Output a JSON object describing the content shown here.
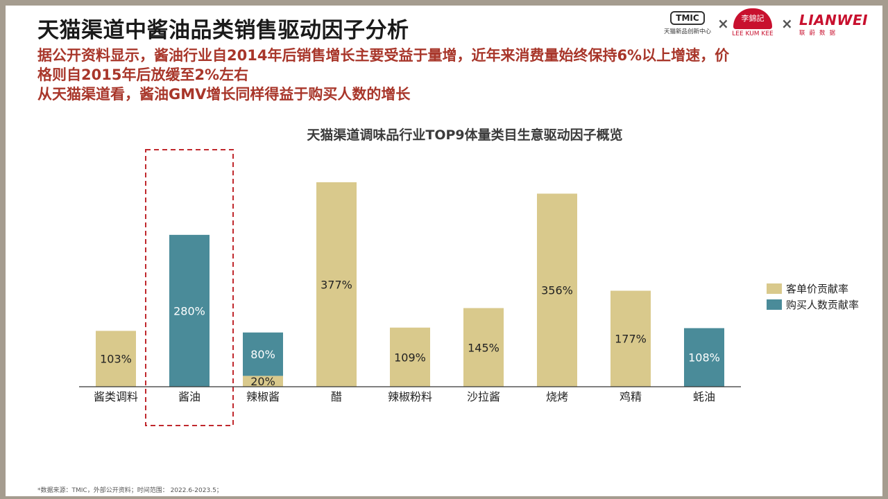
{
  "title": "天猫渠道中酱油品类销售驱动因子分析",
  "subtitle": {
    "line1": "据公开资料显示，酱油行业自2014年后销售增长主要受益于量增，近年来消费量始终保持6%以上增速，价",
    "line2": "格则自2015年后放缓至2%左右",
    "line3": "从天猫渠道看，酱油GMV增长同样得益于购买人数的增长"
  },
  "logos": {
    "tmic_badge": "TMIC",
    "tmic_name": "天猫新品创新中心",
    "separator": "×",
    "lkk_chinese": "李錦記",
    "lkk_english": "LEE KUM KEE",
    "lianwei": "LIANWEI",
    "lianwei_sub": "联蔚数据"
  },
  "source": "*数据来源：TMIC，外部公开资料；时间范围： 2022.6-2023.5；",
  "colors": {
    "price": "#d9c98c",
    "buyers": "#4a8b99",
    "highlight": "#c0282d",
    "title_red": "#a8362a"
  },
  "chart_data": {
    "type": "bar",
    "stacked": true,
    "title": "天猫渠道调味品行业TOP9体量类目生意驱动因子概览",
    "categories": [
      "酱类调料",
      "酱油",
      "辣椒酱",
      "醋",
      "辣椒粉料",
      "沙拉酱",
      "烧烤",
      "鸡精",
      "蚝油"
    ],
    "series": [
      {
        "name": "客单价贡献率",
        "color": "#d9c98c",
        "values": [
          103,
          0,
          20,
          377,
          109,
          145,
          356,
          177,
          0
        ]
      },
      {
        "name": "购买人数贡献率",
        "color": "#4a8b99",
        "values": [
          0,
          280,
          80,
          0,
          0,
          0,
          0,
          0,
          108
        ]
      }
    ],
    "legend_position": "right",
    "grid": false,
    "highlight_category": "酱油"
  }
}
